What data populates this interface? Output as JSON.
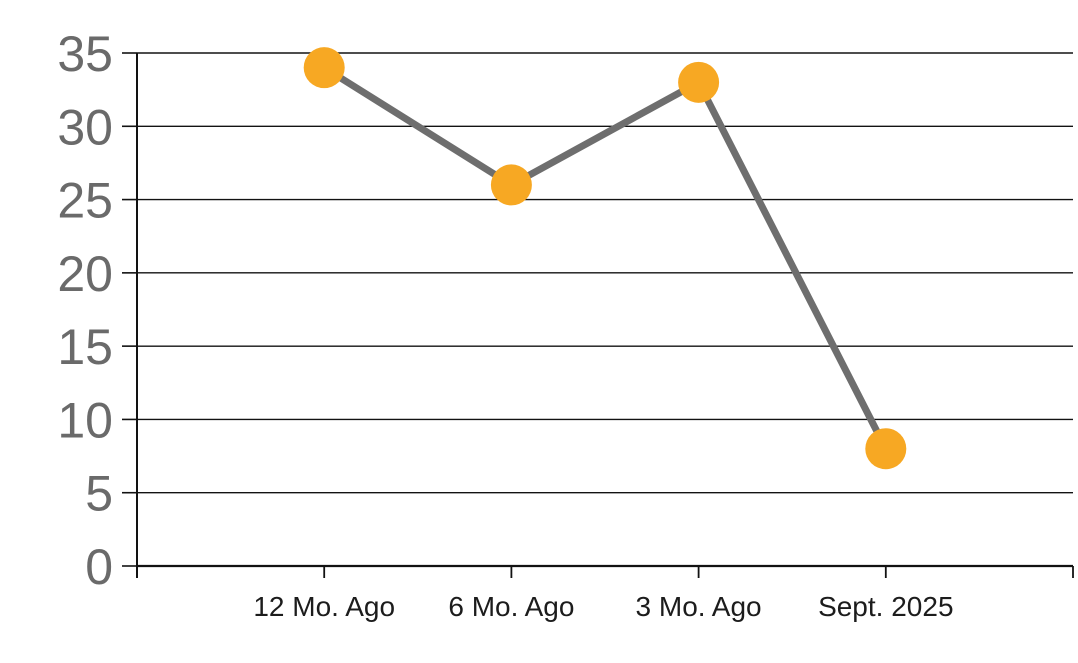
{
  "chart_data": {
    "type": "line",
    "title": "",
    "xlabel": "",
    "ylabel": "",
    "categories": [
      "12 Mo. Ago",
      "6 Mo. Ago",
      "3 Mo. Ago",
      "Sept. 2025"
    ],
    "series": [
      {
        "name": "value",
        "values": [
          34,
          26,
          33,
          8
        ]
      }
    ],
    "ylim": [
      0,
      35
    ],
    "ytick_step": 5,
    "ytick_labels": [
      "0",
      "5",
      "10",
      "15",
      "20",
      "25",
      "30",
      "35"
    ],
    "grid": "horizontal",
    "legend": "none",
    "colors": {
      "marker": "#F7A823",
      "line": "#6E6E6E",
      "gridline": "#121212",
      "axis": "#121212",
      "y_tick_text": "#6A6A6A",
      "x_tick_text": "#1C1C1C",
      "background": "#FFFFFF"
    }
  }
}
